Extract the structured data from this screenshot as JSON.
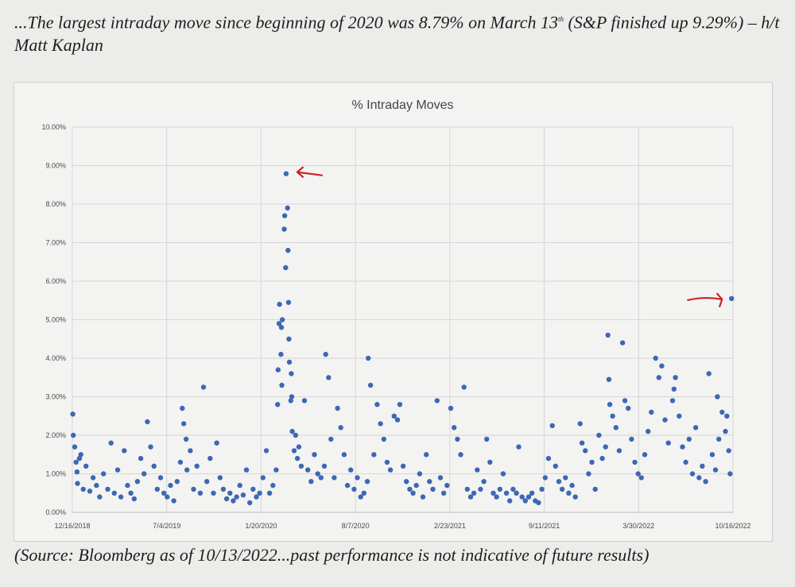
{
  "caption_top": {
    "part1": "...The largest intraday move since beginning of 2020 was 8.79% on March 13",
    "sup": "th",
    "part2": " (S&P finished up 9.29%) – h/t Matt Kaplan"
  },
  "caption_bottom": "(Source: Bloomberg as of 10/13/2022...past performance is not indicative of future results)",
  "chart_data": {
    "type": "scatter",
    "title": "% Intraday Moves",
    "xlabel": "",
    "ylabel": "",
    "ylim": [
      0,
      10
    ],
    "yticks": [
      "0.00%",
      "1.00%",
      "2.00%",
      "3.00%",
      "4.00%",
      "5.00%",
      "6.00%",
      "7.00%",
      "8.00%",
      "9.00%",
      "10.00%"
    ],
    "xlim": [
      "2018-12-16",
      "2022-10-16"
    ],
    "xticks": [
      "12/16/2018",
      "7/4/2019",
      "1/20/2020",
      "8/7/2020",
      "2/23/2021",
      "9/11/2021",
      "3/30/2022",
      "10/16/2022"
    ],
    "grid": true,
    "legend": "none",
    "marker_color": "#3c68b4",
    "annotation_color": "#cc2222",
    "annotations": [
      {
        "type": "arrow",
        "target_date": "2020-03-13",
        "target_value": 8.79
      },
      {
        "type": "arrow",
        "target_date": "2022-10-13",
        "target_value": 5.55
      }
    ],
    "series": [
      {
        "points": [
          [
            "2018-12-17",
            2.55
          ],
          [
            "2018-12-18",
            2.0
          ],
          [
            "2018-12-21",
            1.7
          ],
          [
            "2018-12-24",
            1.3
          ],
          [
            "2018-12-26",
            1.05
          ],
          [
            "2018-12-27",
            0.75
          ],
          [
            "2018-12-31",
            1.4
          ],
          [
            "2019-01-03",
            1.5
          ],
          [
            "2019-01-08",
            0.6
          ],
          [
            "2019-01-14",
            1.2
          ],
          [
            "2019-01-22",
            0.55
          ],
          [
            "2019-01-29",
            0.9
          ],
          [
            "2019-02-05",
            0.7
          ],
          [
            "2019-02-12",
            0.4
          ],
          [
            "2019-02-20",
            1.0
          ],
          [
            "2019-03-01",
            0.6
          ],
          [
            "2019-03-08",
            1.8
          ],
          [
            "2019-03-15",
            0.5
          ],
          [
            "2019-03-22",
            1.1
          ],
          [
            "2019-03-29",
            0.4
          ],
          [
            "2019-04-05",
            1.6
          ],
          [
            "2019-04-12",
            0.7
          ],
          [
            "2019-04-19",
            0.5
          ],
          [
            "2019-04-26",
            0.35
          ],
          [
            "2019-05-03",
            0.8
          ],
          [
            "2019-05-10",
            1.4
          ],
          [
            "2019-05-17",
            1.0
          ],
          [
            "2019-05-24",
            2.35
          ],
          [
            "2019-05-31",
            1.7
          ],
          [
            "2019-06-07",
            1.2
          ],
          [
            "2019-06-14",
            0.6
          ],
          [
            "2019-06-21",
            0.9
          ],
          [
            "2019-06-28",
            0.5
          ],
          [
            "2019-07-05",
            0.4
          ],
          [
            "2019-07-12",
            0.7
          ],
          [
            "2019-07-19",
            0.3
          ],
          [
            "2019-07-26",
            0.8
          ],
          [
            "2019-08-02",
            1.3
          ],
          [
            "2019-08-06",
            2.7
          ],
          [
            "2019-08-09",
            2.3
          ],
          [
            "2019-08-14",
            1.9
          ],
          [
            "2019-08-16",
            1.1
          ],
          [
            "2019-08-23",
            1.6
          ],
          [
            "2019-08-30",
            0.6
          ],
          [
            "2019-09-06",
            1.2
          ],
          [
            "2019-09-13",
            0.5
          ],
          [
            "2019-09-20",
            3.25
          ],
          [
            "2019-09-27",
            0.8
          ],
          [
            "2019-10-04",
            1.4
          ],
          [
            "2019-10-11",
            0.5
          ],
          [
            "2019-10-18",
            1.8
          ],
          [
            "2019-10-25",
            0.9
          ],
          [
            "2019-11-01",
            0.6
          ],
          [
            "2019-11-08",
            0.35
          ],
          [
            "2019-11-15",
            0.5
          ],
          [
            "2019-11-22",
            0.3
          ],
          [
            "2019-11-29",
            0.4
          ],
          [
            "2019-12-06",
            0.7
          ],
          [
            "2019-12-13",
            0.45
          ],
          [
            "2019-12-20",
            1.1
          ],
          [
            "2019-12-27",
            0.25
          ],
          [
            "2020-01-03",
            0.6
          ],
          [
            "2020-01-10",
            0.4
          ],
          [
            "2020-01-17",
            0.5
          ],
          [
            "2020-01-24",
            0.9
          ],
          [
            "2020-01-31",
            1.6
          ],
          [
            "2020-02-07",
            0.5
          ],
          [
            "2020-02-14",
            0.7
          ],
          [
            "2020-02-21",
            1.1
          ],
          [
            "2020-02-24",
            2.8
          ],
          [
            "2020-02-25",
            3.7
          ],
          [
            "2020-02-27",
            4.9
          ],
          [
            "2020-02-28",
            5.4
          ],
          [
            "2020-03-02",
            4.1
          ],
          [
            "2020-03-03",
            4.8
          ],
          [
            "2020-03-04",
            3.3
          ],
          [
            "2020-03-05",
            5.0
          ],
          [
            "2020-03-09",
            7.35
          ],
          [
            "2020-03-10",
            7.7
          ],
          [
            "2020-03-12",
            6.35
          ],
          [
            "2020-03-13",
            8.79
          ],
          [
            "2020-03-16",
            7.9
          ],
          [
            "2020-03-17",
            6.8
          ],
          [
            "2020-03-18",
            5.45
          ],
          [
            "2020-03-19",
            4.5
          ],
          [
            "2020-03-20",
            3.9
          ],
          [
            "2020-03-23",
            2.9
          ],
          [
            "2020-03-24",
            3.6
          ],
          [
            "2020-03-25",
            3.0
          ],
          [
            "2020-03-26",
            2.1
          ],
          [
            "2020-03-30",
            1.6
          ],
          [
            "2020-04-02",
            2.0
          ],
          [
            "2020-04-06",
            1.4
          ],
          [
            "2020-04-09",
            1.7
          ],
          [
            "2020-04-14",
            1.2
          ],
          [
            "2020-04-21",
            2.9
          ],
          [
            "2020-04-28",
            1.1
          ],
          [
            "2020-05-05",
            0.8
          ],
          [
            "2020-05-12",
            1.5
          ],
          [
            "2020-05-19",
            1.0
          ],
          [
            "2020-05-26",
            0.9
          ],
          [
            "2020-06-02",
            1.2
          ],
          [
            "2020-06-05",
            4.1
          ],
          [
            "2020-06-11",
            3.5
          ],
          [
            "2020-06-16",
            1.9
          ],
          [
            "2020-06-23",
            0.9
          ],
          [
            "2020-06-30",
            2.7
          ],
          [
            "2020-07-07",
            2.2
          ],
          [
            "2020-07-14",
            1.5
          ],
          [
            "2020-07-21",
            0.7
          ],
          [
            "2020-07-28",
            1.1
          ],
          [
            "2020-08-04",
            0.6
          ],
          [
            "2020-08-11",
            0.9
          ],
          [
            "2020-08-18",
            0.4
          ],
          [
            "2020-08-25",
            0.5
          ],
          [
            "2020-09-01",
            0.8
          ],
          [
            "2020-09-03",
            4.0
          ],
          [
            "2020-09-08",
            3.3
          ],
          [
            "2020-09-15",
            1.5
          ],
          [
            "2020-09-22",
            2.8
          ],
          [
            "2020-09-29",
            2.3
          ],
          [
            "2020-10-06",
            1.9
          ],
          [
            "2020-10-13",
            1.3
          ],
          [
            "2020-10-20",
            1.1
          ],
          [
            "2020-10-28",
            2.5
          ],
          [
            "2020-11-04",
            2.4
          ],
          [
            "2020-11-09",
            2.8
          ],
          [
            "2020-11-16",
            1.2
          ],
          [
            "2020-11-23",
            0.8
          ],
          [
            "2020-11-30",
            0.6
          ],
          [
            "2020-12-07",
            0.5
          ],
          [
            "2020-12-14",
            0.7
          ],
          [
            "2020-12-21",
            1.0
          ],
          [
            "2020-12-28",
            0.4
          ],
          [
            "2021-01-04",
            1.5
          ],
          [
            "2021-01-11",
            0.8
          ],
          [
            "2021-01-18",
            0.6
          ],
          [
            "2021-01-27",
            2.9
          ],
          [
            "2021-02-03",
            0.9
          ],
          [
            "2021-02-10",
            0.5
          ],
          [
            "2021-02-17",
            0.7
          ],
          [
            "2021-02-25",
            2.7
          ],
          [
            "2021-03-04",
            2.2
          ],
          [
            "2021-03-11",
            1.9
          ],
          [
            "2021-03-18",
            1.5
          ],
          [
            "2021-03-25",
            3.25
          ],
          [
            "2021-04-01",
            0.6
          ],
          [
            "2021-04-08",
            0.4
          ],
          [
            "2021-04-15",
            0.5
          ],
          [
            "2021-04-22",
            1.1
          ],
          [
            "2021-04-29",
            0.6
          ],
          [
            "2021-05-06",
            0.8
          ],
          [
            "2021-05-12",
            1.9
          ],
          [
            "2021-05-19",
            1.3
          ],
          [
            "2021-05-26",
            0.5
          ],
          [
            "2021-06-02",
            0.4
          ],
          [
            "2021-06-09",
            0.6
          ],
          [
            "2021-06-16",
            1.0
          ],
          [
            "2021-06-23",
            0.5
          ],
          [
            "2021-06-30",
            0.3
          ],
          [
            "2021-07-07",
            0.6
          ],
          [
            "2021-07-14",
            0.5
          ],
          [
            "2021-07-19",
            1.7
          ],
          [
            "2021-07-26",
            0.4
          ],
          [
            "2021-08-02",
            0.3
          ],
          [
            "2021-08-09",
            0.4
          ],
          [
            "2021-08-16",
            0.5
          ],
          [
            "2021-08-23",
            0.3
          ],
          [
            "2021-08-30",
            0.25
          ],
          [
            "2021-09-06",
            0.6
          ],
          [
            "2021-09-13",
            0.9
          ],
          [
            "2021-09-20",
            1.4
          ],
          [
            "2021-09-28",
            2.25
          ],
          [
            "2021-10-05",
            1.2
          ],
          [
            "2021-10-12",
            0.8
          ],
          [
            "2021-10-19",
            0.6
          ],
          [
            "2021-10-26",
            0.9
          ],
          [
            "2021-11-02",
            0.5
          ],
          [
            "2021-11-09",
            0.7
          ],
          [
            "2021-11-16",
            0.4
          ],
          [
            "2021-11-26",
            2.3
          ],
          [
            "2021-11-30",
            1.8
          ],
          [
            "2021-12-07",
            1.6
          ],
          [
            "2021-12-14",
            1.0
          ],
          [
            "2021-12-21",
            1.3
          ],
          [
            "2021-12-28",
            0.6
          ],
          [
            "2022-01-05",
            2.0
          ],
          [
            "2022-01-12",
            1.4
          ],
          [
            "2022-01-19",
            1.7
          ],
          [
            "2022-01-24",
            4.6
          ],
          [
            "2022-01-26",
            3.45
          ],
          [
            "2022-01-28",
            2.8
          ],
          [
            "2022-02-03",
            2.5
          ],
          [
            "2022-02-10",
            2.2
          ],
          [
            "2022-02-17",
            1.6
          ],
          [
            "2022-02-24",
            4.4
          ],
          [
            "2022-03-01",
            2.9
          ],
          [
            "2022-03-08",
            2.7
          ],
          [
            "2022-03-15",
            1.9
          ],
          [
            "2022-03-22",
            1.3
          ],
          [
            "2022-03-29",
            1.0
          ],
          [
            "2022-04-05",
            0.9
          ],
          [
            "2022-04-12",
            1.5
          ],
          [
            "2022-04-19",
            2.1
          ],
          [
            "2022-04-26",
            2.6
          ],
          [
            "2022-05-05",
            4.0
          ],
          [
            "2022-05-12",
            3.5
          ],
          [
            "2022-05-18",
            3.8
          ],
          [
            "2022-05-25",
            2.4
          ],
          [
            "2022-06-01",
            1.8
          ],
          [
            "2022-06-10",
            2.9
          ],
          [
            "2022-06-13",
            3.2
          ],
          [
            "2022-06-16",
            3.5
          ],
          [
            "2022-06-24",
            2.5
          ],
          [
            "2022-07-01",
            1.7
          ],
          [
            "2022-07-08",
            1.3
          ],
          [
            "2022-07-15",
            1.9
          ],
          [
            "2022-07-22",
            1.0
          ],
          [
            "2022-07-29",
            2.2
          ],
          [
            "2022-08-05",
            0.9
          ],
          [
            "2022-08-12",
            1.2
          ],
          [
            "2022-08-19",
            0.8
          ],
          [
            "2022-08-26",
            3.6
          ],
          [
            "2022-09-02",
            1.5
          ],
          [
            "2022-09-09",
            1.1
          ],
          [
            "2022-09-13",
            3.0
          ],
          [
            "2022-09-16",
            1.9
          ],
          [
            "2022-09-23",
            2.6
          ],
          [
            "2022-09-30",
            2.1
          ],
          [
            "2022-10-03",
            2.5
          ],
          [
            "2022-10-07",
            1.6
          ],
          [
            "2022-10-10",
            1.0
          ],
          [
            "2022-10-13",
            5.55
          ]
        ]
      }
    ]
  }
}
